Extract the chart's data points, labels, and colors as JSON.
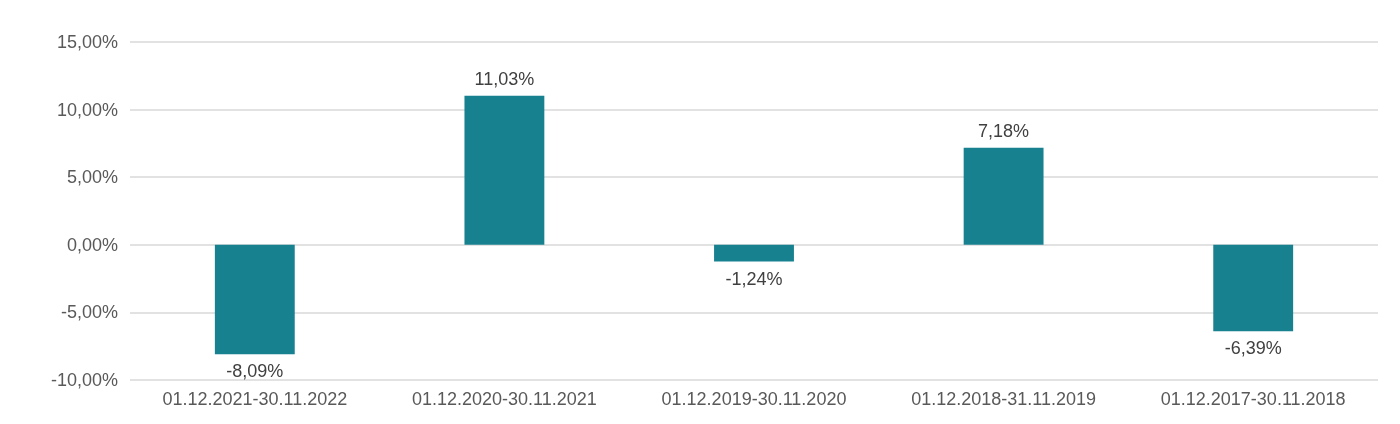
{
  "chart_data": {
    "type": "bar",
    "categories": [
      "01.12.2021-30.11.2022",
      "01.12.2020-30.11.2021",
      "01.12.2019-30.11.2020",
      "01.12.2018-31.11.2019",
      "01.12.2017-30.11.2018"
    ],
    "values": [
      -8.09,
      11.03,
      -1.24,
      7.18,
      -6.39
    ],
    "value_labels": [
      "-8,09%",
      "11,03%",
      "-1,24%",
      "7,18%",
      "-6,39%"
    ],
    "color": "#17818f",
    "ylim": [
      -10,
      15
    ],
    "yticks": [
      {
        "value": -10,
        "label": "-10,00%"
      },
      {
        "value": -5,
        "label": "-5,00%"
      },
      {
        "value": 0,
        "label": "0,00%"
      },
      {
        "value": 5,
        "label": "5,00%"
      },
      {
        "value": 10,
        "label": "10,00%"
      },
      {
        "value": 15,
        "label": "15,00%"
      }
    ],
    "grid": "y"
  }
}
